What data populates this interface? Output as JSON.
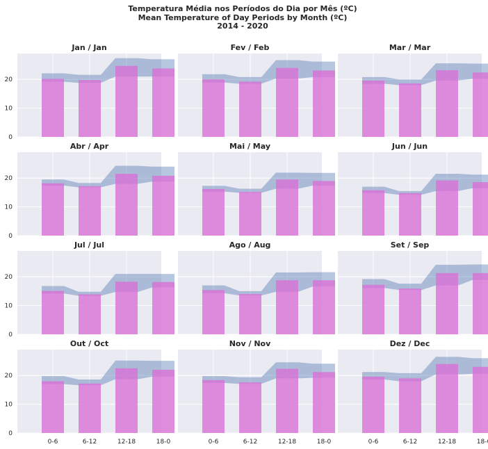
{
  "title_lines": [
    "Temperatura Média nos Períodos do Dia por Mês (ºC)",
    "Mean Temperature of Day Periods by Month (ºC)",
    "2014 - 2020"
  ],
  "colors": {
    "background": "#eaeaf2",
    "grid": "#ffffff",
    "bar": "#da70d6",
    "band": "#4c72b0"
  },
  "chart_data": {
    "type": "bar",
    "categories": [
      "0-6",
      "6-12",
      "12-18",
      "18-0"
    ],
    "ylim": [
      0,
      29
    ],
    "yticks": [
      0,
      10,
      20
    ],
    "grid": true,
    "band_description": "min-max range band drawn behind bars",
    "panels": [
      {
        "title": "Jan / Jan",
        "values": [
          20.2,
          19.8,
          24.7,
          23.8
        ],
        "band_low": [
          19.2,
          18.8,
          21.0,
          21.0
        ],
        "band_high": [
          22.1,
          21.6,
          27.4,
          27.0
        ]
      },
      {
        "title": "Fev / Feb",
        "values": [
          20.0,
          19.2,
          24.0,
          23.1
        ],
        "band_low": [
          18.9,
          18.5,
          20.3,
          20.8
        ],
        "band_high": [
          21.8,
          20.8,
          26.7,
          26.2
        ]
      },
      {
        "title": "Mar / Mar",
        "values": [
          19.6,
          18.6,
          23.2,
          22.4
        ],
        "band_low": [
          18.5,
          18.0,
          19.6,
          20.2
        ],
        "band_high": [
          20.8,
          20.0,
          25.6,
          25.5
        ]
      },
      {
        "title": "Abr / Apr",
        "values": [
          18.2,
          17.2,
          21.5,
          20.8
        ],
        "band_low": [
          17.4,
          16.8,
          18.0,
          18.8
        ],
        "band_high": [
          19.5,
          18.3,
          24.3,
          24.0
        ]
      },
      {
        "title": "Mai / May",
        "values": [
          16.2,
          15.2,
          19.5,
          19.0
        ],
        "band_low": [
          15.3,
          14.9,
          16.3,
          17.4
        ],
        "band_high": [
          17.3,
          16.3,
          21.9,
          21.8
        ]
      },
      {
        "title": "Jun / Jun",
        "values": [
          15.8,
          14.8,
          19.2,
          18.6
        ],
        "band_low": [
          14.8,
          14.2,
          15.5,
          16.5
        ],
        "band_high": [
          17.0,
          15.5,
          21.5,
          21.2
        ]
      },
      {
        "title": "Jul / Jul",
        "values": [
          15.1,
          13.9,
          18.3,
          18.2
        ],
        "band_low": [
          14.2,
          13.4,
          14.7,
          16.3
        ],
        "band_high": [
          16.8,
          14.8,
          21.0,
          21.0
        ]
      },
      {
        "title": "Ago / Aug",
        "values": [
          15.4,
          14.0,
          18.8,
          18.8
        ],
        "band_low": [
          14.3,
          13.5,
          14.8,
          16.6
        ],
        "band_high": [
          17.0,
          15.0,
          21.5,
          21.6
        ]
      },
      {
        "title": "Set / Sep",
        "values": [
          17.2,
          15.9,
          21.3,
          21.3
        ],
        "band_low": [
          16.1,
          15.4,
          17.0,
          18.9
        ],
        "band_high": [
          19.2,
          17.6,
          24.2,
          24.3
        ]
      },
      {
        "title": "Out / Oct",
        "values": [
          18.0,
          17.2,
          22.5,
          22.0
        ],
        "band_low": [
          17.0,
          16.6,
          18.7,
          19.6
        ],
        "band_high": [
          19.8,
          18.6,
          25.2,
          25.1
        ]
      },
      {
        "title": "Nov / Nov",
        "values": [
          18.4,
          17.6,
          22.3,
          21.2
        ],
        "band_low": [
          17.4,
          17.1,
          19.0,
          19.2
        ],
        "band_high": [
          19.8,
          19.4,
          24.6,
          24.1
        ]
      },
      {
        "title": "Dez / Dec",
        "values": [
          19.6,
          19.0,
          24.0,
          23.0
        ],
        "band_low": [
          18.6,
          18.0,
          20.4,
          20.6
        ],
        "band_high": [
          21.2,
          20.8,
          26.5,
          26.0
        ]
      }
    ]
  }
}
